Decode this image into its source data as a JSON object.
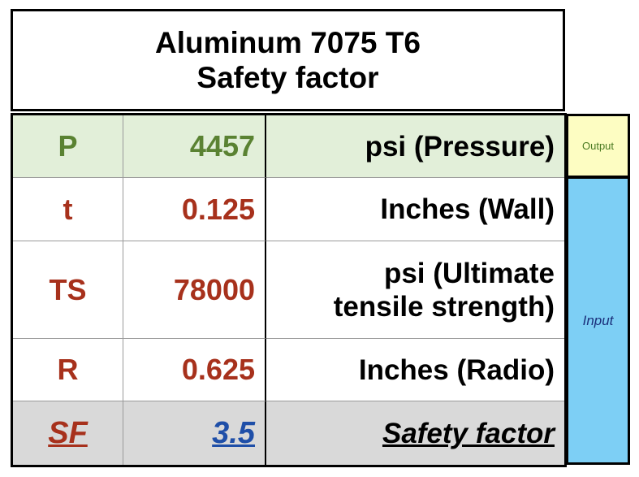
{
  "title": {
    "line1": "Aluminum 7075 T6",
    "line2": "Safety factor"
  },
  "rows": [
    {
      "symbol": "P",
      "value": "4457",
      "unit": "psi (Pressure)"
    },
    {
      "symbol": "t",
      "value": "0.125",
      "unit": "Inches (Wall)"
    },
    {
      "symbol": "TS",
      "value": "78000",
      "unit_line1": "psi (Ultimate",
      "unit_line2": "tensile strength)"
    },
    {
      "symbol": "R",
      "value": "0.625",
      "unit": "Inches (Radio)"
    },
    {
      "symbol": "SF",
      "value": "3.5",
      "unit": "Safety factor"
    }
  ],
  "side": {
    "output_label": "Output",
    "input_label": "Input"
  },
  "colors": {
    "output_row_bg": "#e2efd9",
    "output_text": "#5a8232",
    "input_text": "#a7311c",
    "result_value": "#1f4fa8",
    "output_tag_bg": "#fdfdc2",
    "input_tag_bg": "#7dcff5",
    "result_row_bg": "#d9d9d9"
  }
}
